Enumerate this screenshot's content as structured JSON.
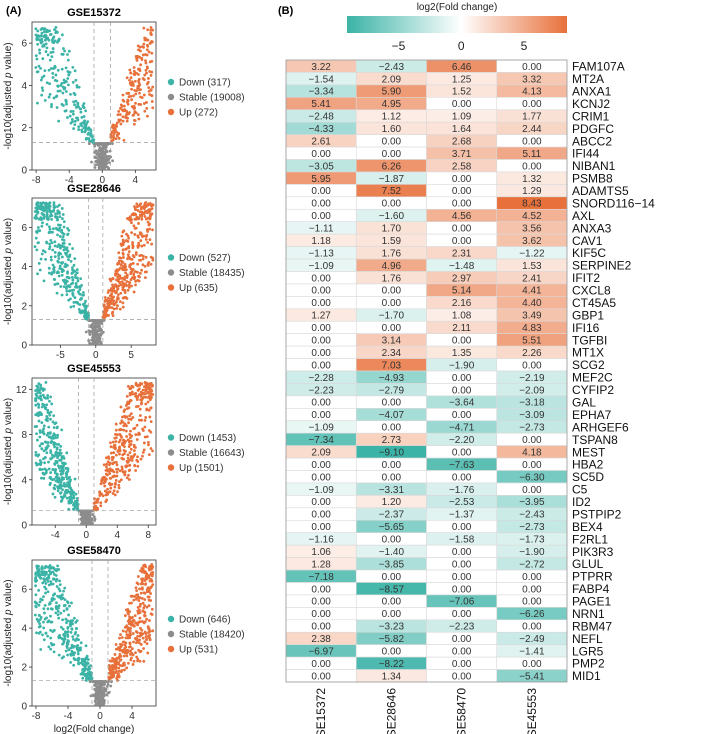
{
  "panel_a_label": "(A)",
  "panel_b_label": "(B)",
  "colors": {
    "down": "#3bb3a6",
    "stable": "#8c8c8c",
    "up": "#e8703a",
    "mid": "#ffffff"
  },
  "chart_data": [
    {
      "type": "scatter",
      "title": "GSE15372",
      "xlabel": "",
      "ylabel": "-log10(adjusted p value)",
      "xlim": [
        -8.5,
        6.5
      ],
      "ylim": [
        0,
        7
      ],
      "xticks": [
        -8,
        -4,
        0,
        4
      ],
      "yticks": [
        0,
        2,
        4,
        6
      ],
      "fc_threshold": 1,
      "p_threshold": 1.3,
      "legend": [
        {
          "label": "Down (317)",
          "key": "down",
          "count": 317
        },
        {
          "label": "Stable (19008)",
          "key": "stable",
          "count": 19008
        },
        {
          "label": "Up (272)",
          "key": "up",
          "count": 272
        }
      ]
    },
    {
      "type": "scatter",
      "title": "GSE28646",
      "xlabel": "",
      "ylabel": "-log10(adjusted p value)",
      "xlim": [
        -9,
        8.5
      ],
      "ylim": [
        0,
        7.5
      ],
      "xticks": [
        -5,
        0,
        5
      ],
      "yticks": [
        0,
        2,
        4,
        6
      ],
      "fc_threshold": 1,
      "p_threshold": 1.3,
      "legend": [
        {
          "label": "Down (527)",
          "key": "down",
          "count": 527
        },
        {
          "label": "Stable (18435)",
          "key": "stable",
          "count": 18435
        },
        {
          "label": "Up (635)",
          "key": "up",
          "count": 635
        }
      ]
    },
    {
      "type": "scatter",
      "title": "GSE45553",
      "xlabel": "",
      "ylabel": "-log10(adjusted p value)",
      "xlim": [
        -7,
        9
      ],
      "ylim": [
        0,
        13
      ],
      "xticks": [
        -4,
        0,
        4,
        8
      ],
      "yticks": [
        0,
        4,
        8,
        12
      ],
      "fc_threshold": 1,
      "p_threshold": 1.3,
      "legend": [
        {
          "label": "Down (1453)",
          "key": "down",
          "count": 1453
        },
        {
          "label": "Stable (16643)",
          "key": "stable",
          "count": 16643
        },
        {
          "label": "Up (1501)",
          "key": "up",
          "count": 1501
        }
      ]
    },
    {
      "type": "scatter",
      "title": "GSE58470",
      "xlabel": "log2(Fold change)",
      "ylabel": "-log10(adjusted p value)",
      "xlim": [
        -8.5,
        7
      ],
      "ylim": [
        0,
        7.5
      ],
      "xticks": [
        -8,
        -4,
        0,
        4
      ],
      "yticks": [
        0,
        2,
        4,
        6
      ],
      "fc_threshold": 1,
      "p_threshold": 1.3,
      "legend": [
        {
          "label": "Down (646)",
          "key": "down",
          "count": 646
        },
        {
          "label": "Stable (18420)",
          "key": "stable",
          "count": 18420
        },
        {
          "label": "Up (531)",
          "key": "up",
          "count": 531
        }
      ]
    },
    {
      "type": "heatmap",
      "title": "log2(Fold change)",
      "colorbar_ticks": [
        -5,
        0,
        5
      ],
      "colorbar_range": [
        -9.1,
        8.43
      ],
      "columns": [
        "GSE15372",
        "GSE28646",
        "GSE58470",
        "GSE45553"
      ],
      "rows": [
        {
          "gene": "FAM107A",
          "values": [
            3.22,
            -2.43,
            6.46,
            0.0
          ]
        },
        {
          "gene": "MT2A",
          "values": [
            -1.54,
            2.09,
            1.25,
            3.32
          ]
        },
        {
          "gene": "ANXA1",
          "values": [
            -3.34,
            5.9,
            1.52,
            4.13
          ]
        },
        {
          "gene": "KCNJ2",
          "values": [
            5.41,
            4.95,
            0.0,
            0.0
          ]
        },
        {
          "gene": "CRIM1",
          "values": [
            -2.48,
            1.12,
            1.09,
            1.77
          ]
        },
        {
          "gene": "PDGFC",
          "values": [
            -4.33,
            1.6,
            1.64,
            2.44
          ]
        },
        {
          "gene": "ABCC2",
          "values": [
            2.61,
            0.0,
            2.68,
            0.0
          ]
        },
        {
          "gene": "IFI44",
          "values": [
            0.0,
            0.0,
            3.71,
            5.11
          ]
        },
        {
          "gene": "NIBAN1",
          "values": [
            -3.05,
            6.26,
            2.58,
            0.0
          ]
        },
        {
          "gene": "PSMB8",
          "values": [
            5.95,
            -1.87,
            0.0,
            1.32
          ]
        },
        {
          "gene": "ADAMTS5",
          "values": [
            0.0,
            7.52,
            0.0,
            1.29
          ]
        },
        {
          "gene": "SNORD116−14",
          "values": [
            0.0,
            0.0,
            0.0,
            8.43
          ]
        },
        {
          "gene": "AXL",
          "values": [
            0.0,
            -1.6,
            4.56,
            4.52
          ]
        },
        {
          "gene": "ANXA3",
          "values": [
            -1.11,
            1.7,
            0.0,
            3.56
          ]
        },
        {
          "gene": "CAV1",
          "values": [
            1.18,
            1.59,
            0.0,
            3.62
          ]
        },
        {
          "gene": "KIF5C",
          "values": [
            -1.13,
            1.76,
            2.31,
            -1.22
          ]
        },
        {
          "gene": "SERPINE2",
          "values": [
            -1.09,
            4.96,
            -1.48,
            1.53
          ]
        },
        {
          "gene": "IFIT2",
          "values": [
            0.0,
            1.76,
            2.97,
            2.41
          ]
        },
        {
          "gene": "CXCL8",
          "values": [
            0.0,
            0.0,
            5.14,
            4.41
          ]
        },
        {
          "gene": "CT45A5",
          "values": [
            0.0,
            0.0,
            2.16,
            4.4
          ]
        },
        {
          "gene": "GBP1",
          "values": [
            1.27,
            -1.7,
            1.08,
            3.49
          ]
        },
        {
          "gene": "IFI16",
          "values": [
            0.0,
            0.0,
            2.11,
            4.83
          ]
        },
        {
          "gene": "TGFBI",
          "values": [
            0.0,
            3.14,
            0.0,
            5.51
          ]
        },
        {
          "gene": "MT1X",
          "values": [
            0.0,
            2.34,
            1.35,
            2.26
          ]
        },
        {
          "gene": "SCG2",
          "values": [
            0.0,
            7.03,
            -1.9,
            0.0
          ]
        },
        {
          "gene": "MEF2C",
          "values": [
            -2.28,
            -4.93,
            0.0,
            -2.19
          ]
        },
        {
          "gene": "CYFIP2",
          "values": [
            -2.23,
            -2.79,
            0.0,
            -2.09
          ]
        },
        {
          "gene": "GAL",
          "values": [
            0.0,
            0.0,
            -3.64,
            -3.18
          ]
        },
        {
          "gene": "EPHA7",
          "values": [
            0.0,
            -4.07,
            0.0,
            -3.09
          ]
        },
        {
          "gene": "ARHGEF6",
          "values": [
            -1.09,
            0.0,
            -4.71,
            -2.73
          ]
        },
        {
          "gene": "TSPAN8",
          "values": [
            -7.34,
            2.73,
            -2.2,
            0.0
          ]
        },
        {
          "gene": "MEST",
          "values": [
            2.09,
            -9.1,
            0.0,
            4.18
          ]
        },
        {
          "gene": "HBA2",
          "values": [
            0.0,
            0.0,
            -7.63,
            0.0
          ]
        },
        {
          "gene": "SC5D",
          "values": [
            0.0,
            0.0,
            0.0,
            -6.3
          ]
        },
        {
          "gene": "C5",
          "values": [
            -1.09,
            -3.31,
            -1.76,
            0.0
          ]
        },
        {
          "gene": "ID2",
          "values": [
            0.0,
            1.2,
            -2.53,
            -3.95
          ]
        },
        {
          "gene": "PSTPIP2",
          "values": [
            0.0,
            -2.37,
            -1.37,
            -2.43
          ]
        },
        {
          "gene": "BEX4",
          "values": [
            0.0,
            -5.65,
            0.0,
            -2.73
          ]
        },
        {
          "gene": "F2RL1",
          "values": [
            -1.16,
            0.0,
            -1.58,
            -1.73
          ]
        },
        {
          "gene": "PIK3R3",
          "values": [
            1.06,
            -1.4,
            0.0,
            -1.9
          ]
        },
        {
          "gene": "GLUL",
          "values": [
            1.28,
            -3.85,
            0.0,
            -2.72
          ]
        },
        {
          "gene": "PTPRR",
          "values": [
            -7.18,
            0.0,
            0.0,
            0.0
          ]
        },
        {
          "gene": "FABP4",
          "values": [
            0.0,
            -8.57,
            0.0,
            0.0
          ]
        },
        {
          "gene": "PAGE1",
          "values": [
            0.0,
            0.0,
            -7.06,
            0.0
          ]
        },
        {
          "gene": "NRN1",
          "values": [
            0.0,
            0.0,
            0.0,
            -6.26
          ]
        },
        {
          "gene": "RBM47",
          "values": [
            0.0,
            -3.23,
            -2.23,
            0.0
          ]
        },
        {
          "gene": "NEFL",
          "values": [
            2.38,
            -5.82,
            0.0,
            -2.49
          ]
        },
        {
          "gene": "LGR5",
          "values": [
            -6.97,
            0.0,
            0.0,
            -1.41
          ]
        },
        {
          "gene": "PMP2",
          "values": [
            0.0,
            -8.22,
            0.0,
            0.0
          ]
        },
        {
          "gene": "MID1",
          "values": [
            0.0,
            1.34,
            0.0,
            -5.41
          ]
        }
      ]
    }
  ]
}
